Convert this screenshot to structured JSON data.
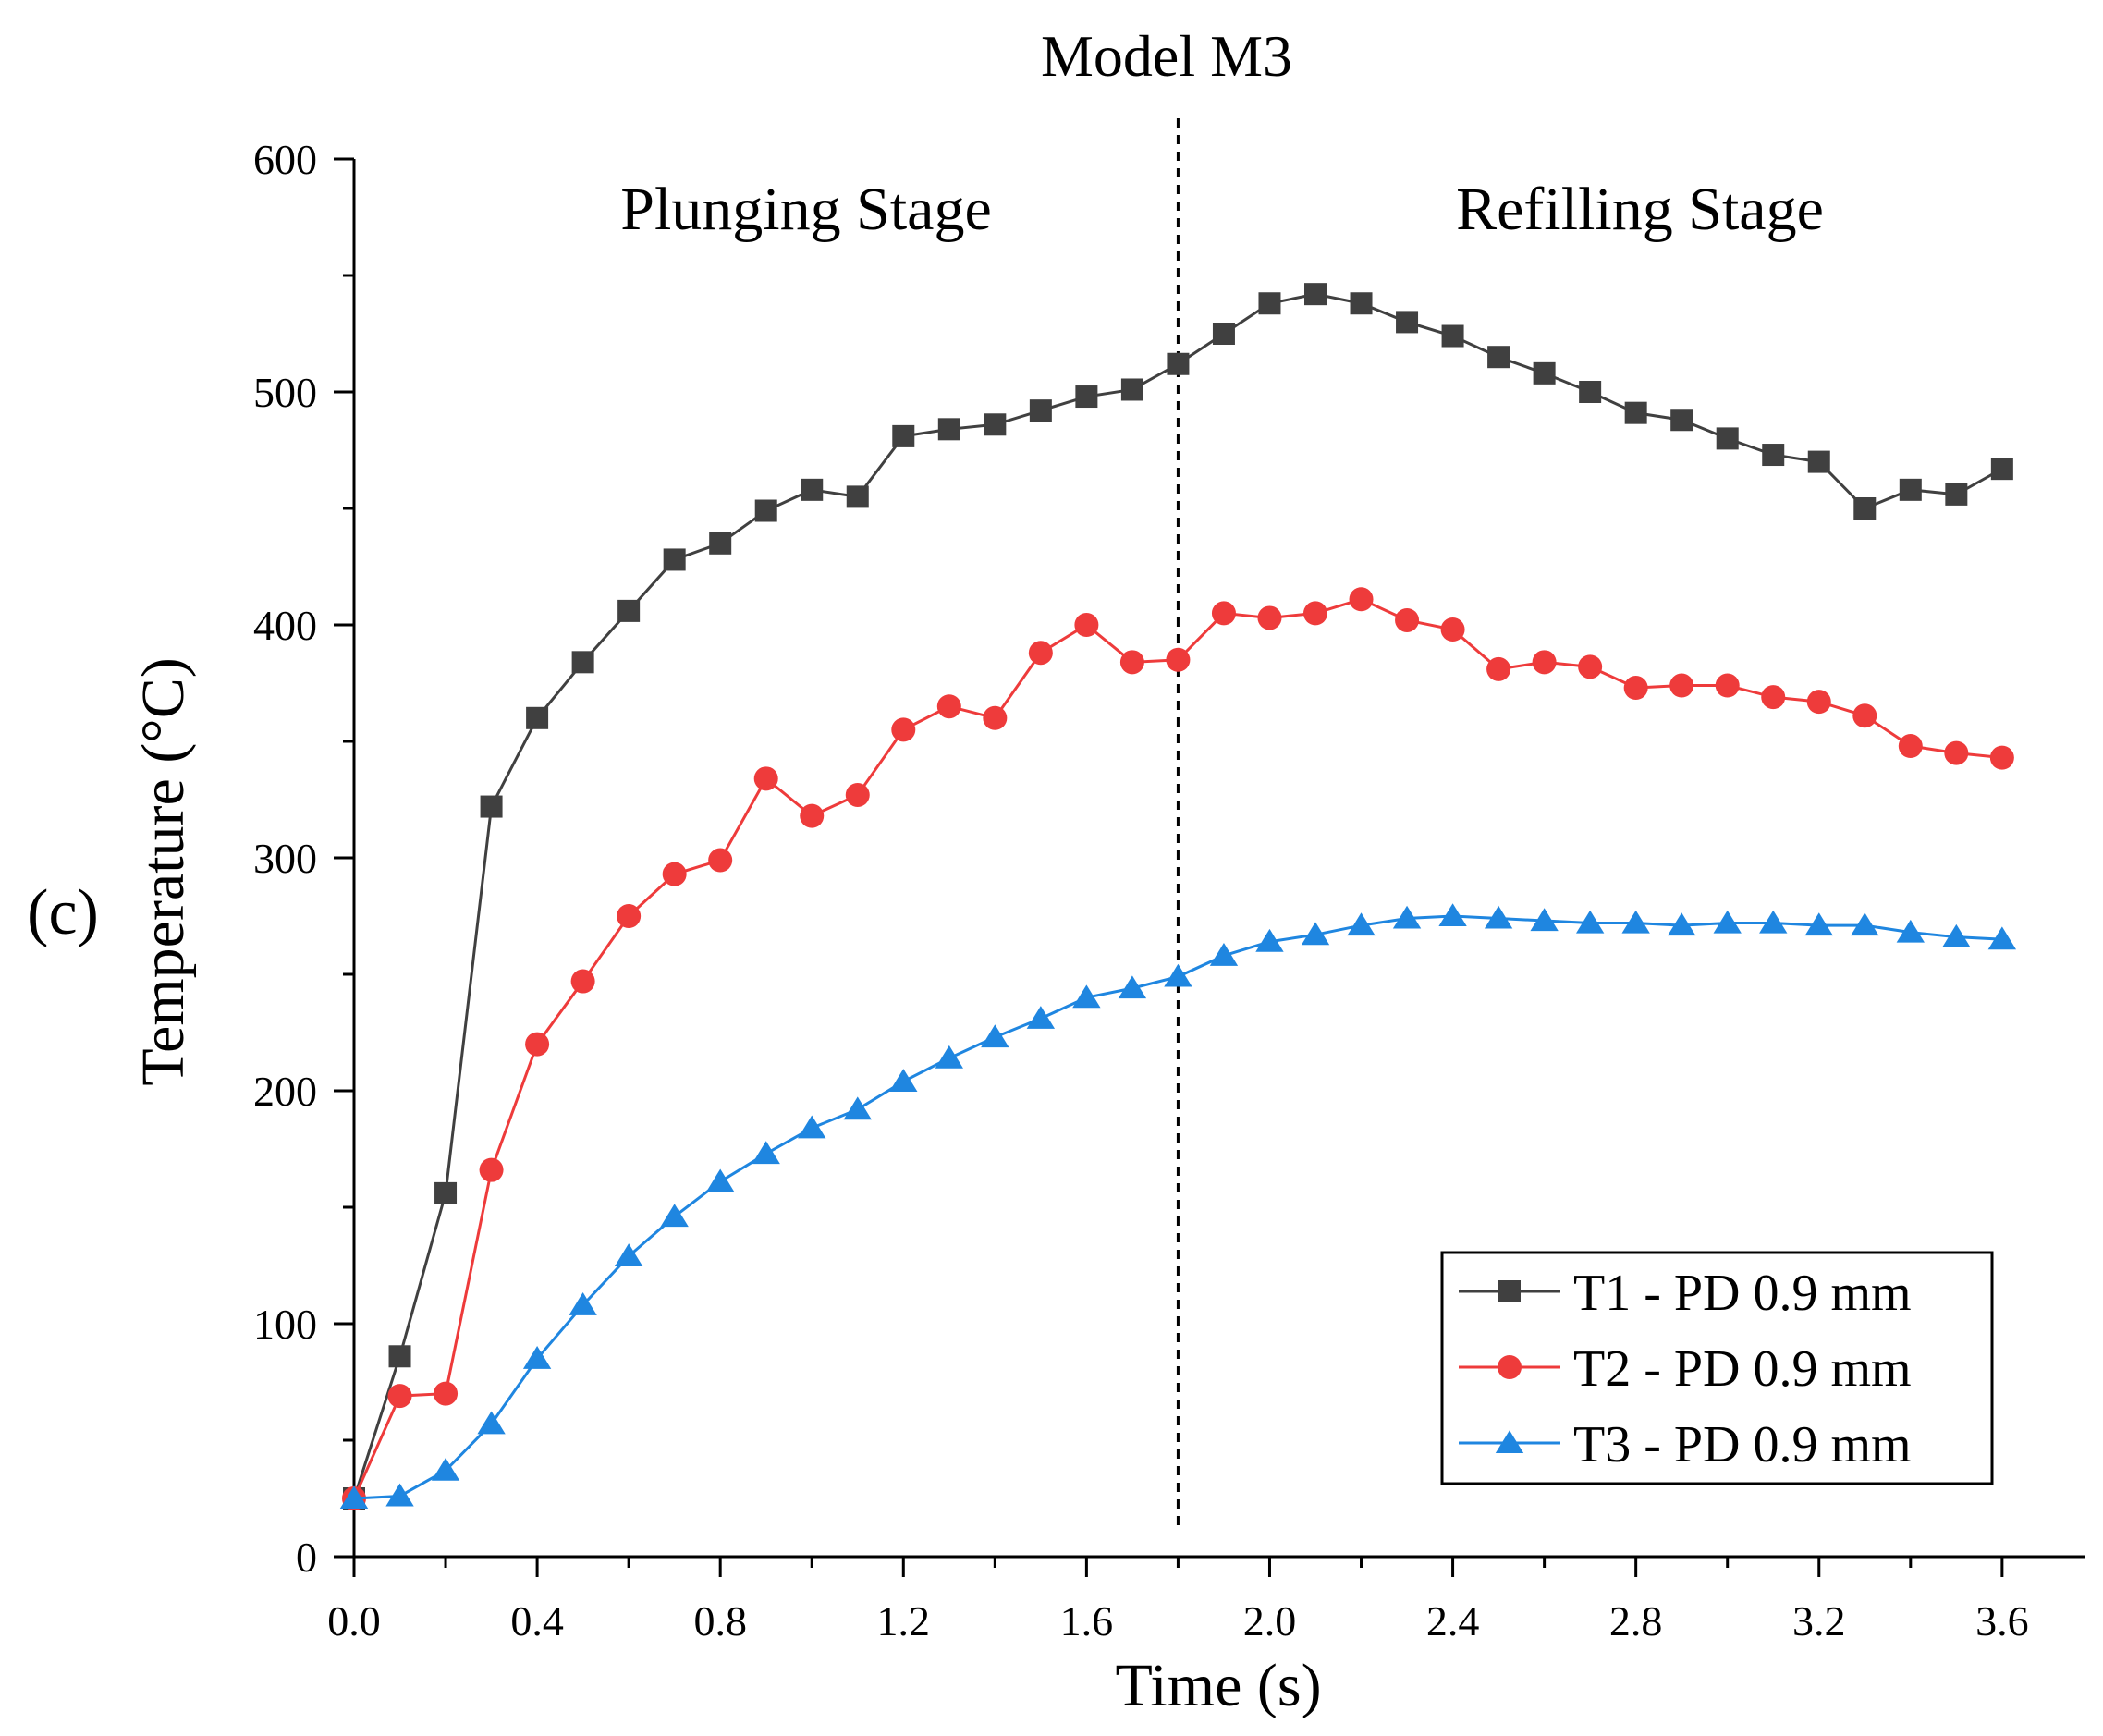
{
  "chart_data": {
    "type": "line",
    "title": "Model M3",
    "panel_label": "(c)",
    "xlabel": "Time (s)",
    "ylabel": "Temperature (°C)",
    "xlim": [
      0,
      3.78
    ],
    "ylim": [
      0,
      600
    ],
    "xticks": [
      0.0,
      0.4,
      0.8,
      1.2,
      1.6,
      2.0,
      2.4,
      2.8,
      3.2,
      3.6
    ],
    "xtick_labels": [
      "0.0",
      "0.4",
      "0.8",
      "1.2",
      "1.6",
      "2.0",
      "2.4",
      "2.8",
      "3.2",
      "3.6"
    ],
    "yticks": [
      0,
      100,
      200,
      300,
      400,
      500,
      600
    ],
    "ytick_labels": [
      "0",
      "100",
      "200",
      "300",
      "400",
      "500",
      "600"
    ],
    "divider_x": 1.8,
    "stage_labels": {
      "left": "Plunging Stage",
      "right": "Refilling Stage"
    },
    "legend_position": "bottom-right",
    "x": [
      0.0,
      0.1,
      0.2,
      0.3,
      0.4,
      0.5,
      0.6,
      0.7,
      0.8,
      0.9,
      1.0,
      1.1,
      1.2,
      1.3,
      1.4,
      1.5,
      1.6,
      1.7,
      1.8,
      1.9,
      2.0,
      2.1,
      2.2,
      2.3,
      2.4,
      2.5,
      2.6,
      2.7,
      2.8,
      2.9,
      3.0,
      3.1,
      3.2,
      3.3,
      3.4,
      3.5,
      3.6
    ],
    "series": [
      {
        "name": "T1 - PD 0.9 mm",
        "color": "#404040",
        "marker": "square",
        "values": [
          25,
          86,
          156,
          322,
          360,
          384,
          406,
          428,
          435,
          449,
          458,
          455,
          481,
          484,
          486,
          492,
          498,
          501,
          512,
          525,
          538,
          542,
          538,
          530,
          524,
          515,
          508,
          500,
          491,
          488,
          480,
          473,
          470,
          450,
          458,
          456,
          467
        ]
      },
      {
        "name": "T2 - PD 0.9 mm",
        "color": "#ee3b3b",
        "marker": "circle",
        "values": [
          25,
          69,
          70,
          166,
          220,
          247,
          275,
          293,
          299,
          334,
          318,
          327,
          355,
          365,
          360,
          388,
          400,
          384,
          385,
          405,
          403,
          405,
          411,
          402,
          398,
          381,
          384,
          382,
          373,
          374,
          374,
          369,
          367,
          361,
          348,
          345,
          343
        ]
      },
      {
        "name": "T3 - PD 0.9 mm",
        "color": "#1f86e0",
        "marker": "triangle",
        "values": [
          25,
          26,
          37,
          57,
          85,
          108,
          129,
          146,
          161,
          173,
          184,
          192,
          204,
          214,
          223,
          231,
          240,
          244,
          249,
          258,
          264,
          267,
          271,
          274,
          275,
          274,
          273,
          272,
          272,
          271,
          272,
          272,
          271,
          271,
          268,
          266,
          265
        ]
      }
    ]
  }
}
